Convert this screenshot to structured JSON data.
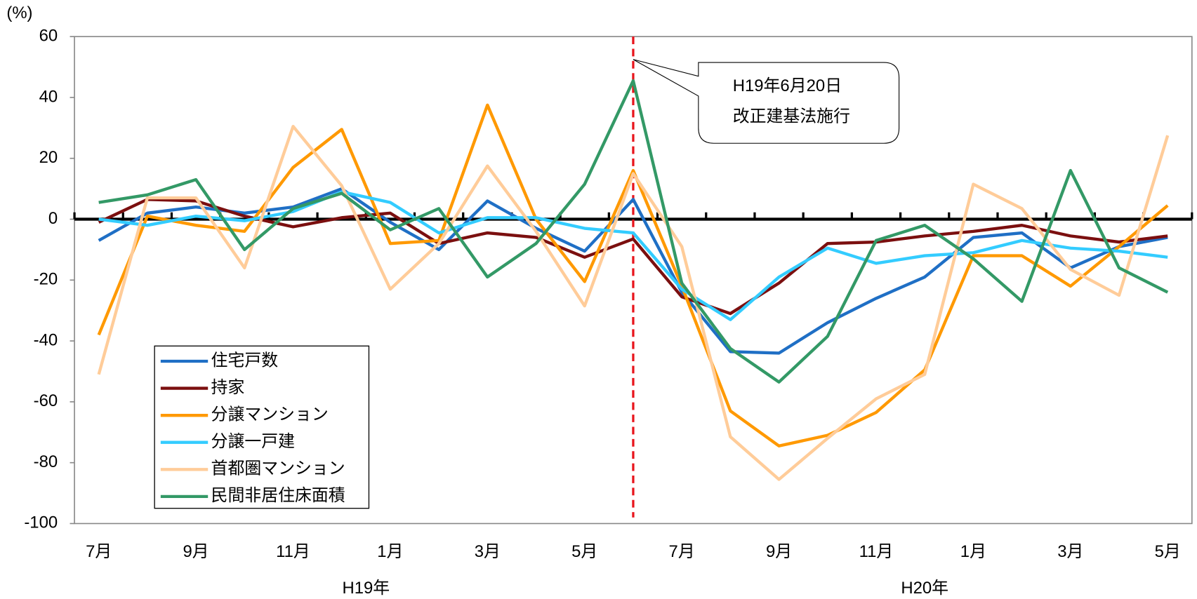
{
  "chart_data": {
    "type": "line",
    "y_label": "(%)",
    "categories": [
      "7月",
      null,
      "9月",
      null,
      "11月",
      null,
      "1月",
      null,
      "3月",
      null,
      "5月",
      null,
      "7月",
      null,
      "9月",
      null,
      "11月",
      null,
      "1月",
      null,
      "3月",
      null,
      "5月"
    ],
    "group_labels": [
      {
        "label": "H19年",
        "from": 0,
        "to": 11
      },
      {
        "label": "H20年",
        "from": 12,
        "to": 22
      }
    ],
    "ylim": [
      -100,
      60
    ],
    "yticks": [
      -100,
      -80,
      -60,
      -40,
      -20,
      0,
      20,
      40,
      60
    ],
    "legend": "lower-left",
    "series": [
      {
        "name": "住宅戸数",
        "color": "#1f6fc5",
        "values": [
          -7,
          2,
          4,
          2,
          4,
          10,
          -1,
          -10,
          6,
          -3,
          -10.5,
          6.5,
          -24,
          -43.5,
          -44,
          -34,
          -26,
          -19,
          -6,
          -4.5,
          -16,
          -9,
          -6
        ]
      },
      {
        "name": "持家",
        "color": "#7b0f0f",
        "values": [
          -1,
          6.5,
          6,
          1,
          -2.5,
          0.5,
          2,
          -8,
          -4.5,
          -6,
          -12.5,
          -6.5,
          -25.5,
          -31,
          -21,
          -8,
          -7.5,
          -5.5,
          -4,
          -2,
          -5.5,
          -7.5,
          -5.5
        ]
      },
      {
        "name": "分譲マンション",
        "color": "#ff9900",
        "values": [
          -38,
          1,
          -2,
          -4,
          17,
          29.5,
          -8,
          -7,
          37.5,
          0,
          -20.5,
          16,
          -22,
          -63,
          -74.5,
          -71,
          -63.5,
          -49.5,
          -12,
          -12,
          -22,
          -9,
          4.5
        ]
      },
      {
        "name": "分譲一戸建",
        "color": "#33ccff",
        "values": [
          0,
          -2,
          1,
          -0.5,
          2.5,
          9,
          5.5,
          -4.5,
          0.5,
          0.5,
          -3,
          -4.5,
          -23,
          -33,
          -19,
          -9.5,
          -14.5,
          -12,
          -11,
          -7,
          -9.5,
          -10.5,
          -12.5
        ]
      },
      {
        "name": "首都圏マンション",
        "color": "#ffcc99",
        "values": [
          -51,
          7,
          7,
          -16,
          30.5,
          11,
          -23,
          -8,
          17.5,
          -4,
          -28.5,
          15,
          -9,
          -71.5,
          -85.5,
          -72,
          -59,
          -51,
          11.5,
          3.5,
          -16.5,
          -25,
          27.5
        ]
      },
      {
        "name": "民間非居住床面積",
        "color": "#339966",
        "values": [
          5.5,
          8,
          13,
          -10,
          3.5,
          8.5,
          -3.5,
          3.5,
          -19,
          -8,
          11.5,
          45.5,
          -21,
          -42.5,
          -53.5,
          -38.5,
          -7,
          -2,
          -13,
          -27,
          16,
          -16,
          -24
        ]
      }
    ],
    "annotation": {
      "lines": [
        "H19年6月20日",
        "改正建基法施行"
      ],
      "index": 11
    }
  }
}
